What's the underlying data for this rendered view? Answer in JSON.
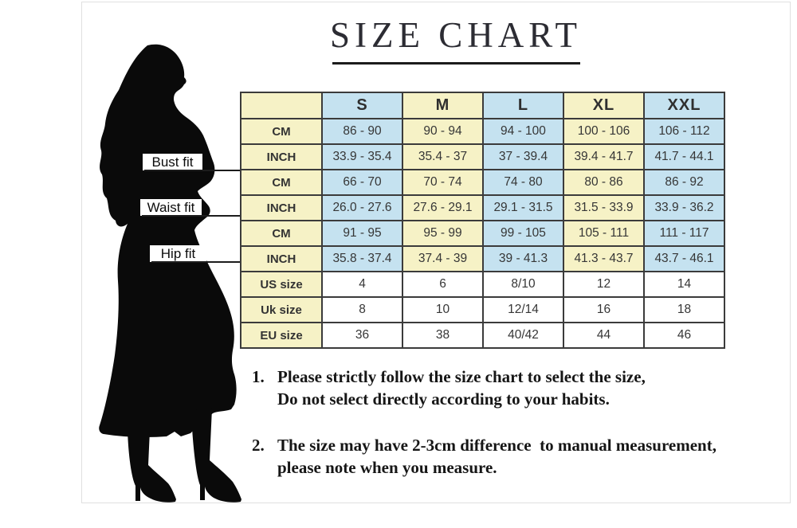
{
  "title": {
    "text": "SIZE CHART"
  },
  "figure": {
    "description": "black silhouette of a woman in a long dress and high heels",
    "measure_labels": [
      "Bust fit",
      "Waist fit",
      "Hip fit"
    ]
  },
  "size_table": {
    "columns": [
      "",
      "S",
      "M",
      "L",
      "XL",
      "XXL"
    ],
    "rows": [
      {
        "label": "CM",
        "group": "bust",
        "kind": "measurement",
        "values": [
          "86 - 90",
          "90 - 94",
          "94 - 100",
          "100 - 106",
          "106 - 112"
        ]
      },
      {
        "label": "INCH",
        "group": "bust",
        "kind": "measurement",
        "values": [
          "33.9 - 35.4",
          "35.4 - 37",
          "37 - 39.4",
          "39.4 - 41.7",
          "41.7 - 44.1"
        ]
      },
      {
        "label": "CM",
        "group": "waist",
        "kind": "measurement",
        "values": [
          "66 - 70",
          "70 - 74",
          "74 - 80",
          "80 - 86",
          "86 - 92"
        ]
      },
      {
        "label": "INCH",
        "group": "waist",
        "kind": "measurement",
        "values": [
          "26.0 - 27.6",
          "27.6 - 29.1",
          "29.1 - 31.5",
          "31.5 - 33.9",
          "33.9 - 36.2"
        ]
      },
      {
        "label": "CM",
        "group": "hip",
        "kind": "measurement",
        "values": [
          "91 - 95",
          "95 - 99",
          "99 - 105",
          "105 - 111",
          "111 - 117"
        ]
      },
      {
        "label": "INCH",
        "group": "hip",
        "kind": "measurement",
        "values": [
          "35.8 - 37.4",
          "37.4 - 39",
          "39 - 41.3",
          "41.3 - 43.7",
          "43.7 - 46.1"
        ]
      },
      {
        "label": "US size",
        "kind": "size",
        "values": [
          "4",
          "6",
          "8/10",
          "12",
          "14"
        ]
      },
      {
        "label": "Uk size",
        "kind": "size",
        "values": [
          "8",
          "10",
          "12/14",
          "16",
          "18"
        ]
      },
      {
        "label": "EU size",
        "kind": "size",
        "values": [
          "36",
          "38",
          "40/42",
          "44",
          "46"
        ]
      }
    ]
  },
  "notes": [
    {
      "num": "1.",
      "line1": "Please strictly follow the size chart to select the size,",
      "line2": "Do not select directly according to your habits."
    },
    {
      "num": "2.",
      "line1": "The size may have 2-3cm difference  to manual measurement,",
      "line2": "please note when you measure."
    }
  ],
  "colors": {
    "cell_yellow": "#f6f2c6",
    "cell_blue": "#c5e2f0",
    "cell_white": "#ffffff",
    "table_border": "#3b3b3b",
    "silhouette": "#0a0a0a",
    "column_pattern": [
      "blue",
      "yellow",
      "blue",
      "yellow",
      "blue"
    ]
  },
  "chart_data": {
    "type": "table",
    "title": "SIZE CHART",
    "sizes": [
      "S",
      "M",
      "L",
      "XL",
      "XXL"
    ],
    "measurements": [
      {
        "name": "Bust fit",
        "cm": [
          "86-90",
          "90-94",
          "94-100",
          "100-106",
          "106-112"
        ],
        "inch": [
          "33.9-35.4",
          "35.4-37",
          "37-39.4",
          "39.4-41.7",
          "41.7-44.1"
        ]
      },
      {
        "name": "Waist fit",
        "cm": [
          "66-70",
          "70-74",
          "74-80",
          "80-86",
          "86-92"
        ],
        "inch": [
          "26.0-27.6",
          "27.6-29.1",
          "29.1-31.5",
          "31.5-33.9",
          "33.9-36.2"
        ]
      },
      {
        "name": "Hip fit",
        "cm": [
          "91-95",
          "95-99",
          "99-105",
          "105-111",
          "111-117"
        ],
        "inch": [
          "35.8-37.4",
          "37.4-39",
          "39-41.3",
          "41.3-43.7",
          "43.7-46.1"
        ]
      }
    ],
    "size_conversions": [
      {
        "system": "US size",
        "values": [
          "4",
          "6",
          "8/10",
          "12",
          "14"
        ]
      },
      {
        "system": "Uk size",
        "values": [
          "8",
          "10",
          "12/14",
          "16",
          "18"
        ]
      },
      {
        "system": "EU size",
        "values": [
          "36",
          "38",
          "40/42",
          "44",
          "46"
        ]
      }
    ],
    "notes": [
      "Please strictly follow the size chart to select the size, Do not select directly according to your habits.",
      "The size may have 2-3cm difference to manual measurement, please note when you measure."
    ]
  }
}
